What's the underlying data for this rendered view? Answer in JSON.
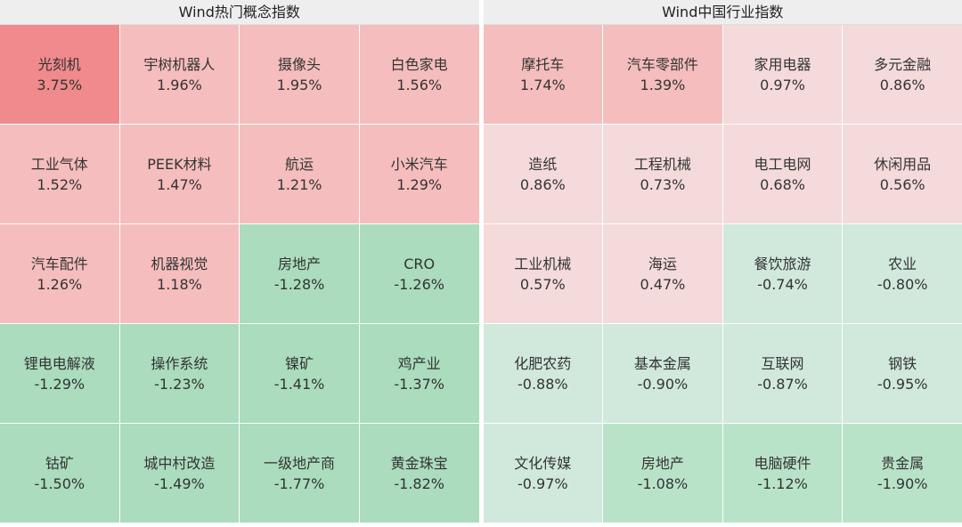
{
  "panels": [
    {
      "title": "Wind热门概念指数",
      "cells": [
        {
          "name": "光刻机",
          "change": "3.75%",
          "color": "#f08a8c"
        },
        {
          "name": "宇树机器人",
          "change": "1.96%",
          "color": "#f5bdbd"
        },
        {
          "name": "摄像头",
          "change": "1.95%",
          "color": "#f5bdbd"
        },
        {
          "name": "白色家电",
          "change": "1.56%",
          "color": "#f5bdbd"
        },
        {
          "name": "工业气体",
          "change": "1.52%",
          "color": "#f5bdbd"
        },
        {
          "name": "PEEK材料",
          "change": "1.47%",
          "color": "#f5bdbd"
        },
        {
          "name": "航运",
          "change": "1.21%",
          "color": "#f5bdbd"
        },
        {
          "name": "小米汽车",
          "change": "1.29%",
          "color": "#f5bdbd"
        },
        {
          "name": "汽车配件",
          "change": "1.26%",
          "color": "#f5bdbd"
        },
        {
          "name": "机器视觉",
          "change": "1.18%",
          "color": "#f5bdbd"
        },
        {
          "name": "房地产",
          "change": "-1.28%",
          "color": "#aadcbd"
        },
        {
          "name": "CRO",
          "change": "-1.26%",
          "color": "#aadcbd"
        },
        {
          "name": "锂电电解液",
          "change": "-1.29%",
          "color": "#aadcbd"
        },
        {
          "name": "操作系统",
          "change": "-1.23%",
          "color": "#aadcbd"
        },
        {
          "name": "镍矿",
          "change": "-1.41%",
          "color": "#aadcbd"
        },
        {
          "name": "鸡产业",
          "change": "-1.37%",
          "color": "#aadcbd"
        },
        {
          "name": "钴矿",
          "change": "-1.50%",
          "color": "#aadcbd"
        },
        {
          "name": "城中村改造",
          "change": "-1.49%",
          "color": "#aadcbd"
        },
        {
          "name": "一级地产商",
          "change": "-1.77%",
          "color": "#aadcbd"
        },
        {
          "name": "黄金珠宝",
          "change": "-1.82%",
          "color": "#aadcbd"
        }
      ]
    },
    {
      "title": "Wind中国行业指数",
      "cells": [
        {
          "name": "摩托车",
          "change": "1.74%",
          "color": "#f5bdbd"
        },
        {
          "name": "汽车零部件",
          "change": "1.39%",
          "color": "#f5bdbd"
        },
        {
          "name": "家用电器",
          "change": "0.97%",
          "color": "#f4dada"
        },
        {
          "name": "多元金融",
          "change": "0.86%",
          "color": "#f4dada"
        },
        {
          "name": "造纸",
          "change": "0.86%",
          "color": "#f4dada"
        },
        {
          "name": "工程机械",
          "change": "0.73%",
          "color": "#f4dada"
        },
        {
          "name": "电工电网",
          "change": "0.68%",
          "color": "#f4dada"
        },
        {
          "name": "休闲用品",
          "change": "0.56%",
          "color": "#f4dada"
        },
        {
          "name": "工业机械",
          "change": "0.57%",
          "color": "#f4dada"
        },
        {
          "name": "海运",
          "change": "0.47%",
          "color": "#f4dada"
        },
        {
          "name": "餐饮旅游",
          "change": "-0.74%",
          "color": "#d0e9dc"
        },
        {
          "name": "农业",
          "change": "-0.80%",
          "color": "#d0e9dc"
        },
        {
          "name": "化肥农药",
          "change": "-0.88%",
          "color": "#d0e9dc"
        },
        {
          "name": "基本金属",
          "change": "-0.90%",
          "color": "#d0e9dc"
        },
        {
          "name": "互联网",
          "change": "-0.87%",
          "color": "#d0e9dc"
        },
        {
          "name": "钢铁",
          "change": "-0.95%",
          "color": "#d0e9dc"
        },
        {
          "name": "文化传媒",
          "change": "-0.97%",
          "color": "#d0e9dc"
        },
        {
          "name": "房地产",
          "change": "-1.08%",
          "color": "#b9e3c9"
        },
        {
          "name": "电脑硬件",
          "change": "-1.12%",
          "color": "#b9e3c9"
        },
        {
          "name": "贵金属",
          "change": "-1.90%",
          "color": "#b9e3c9"
        }
      ]
    }
  ]
}
